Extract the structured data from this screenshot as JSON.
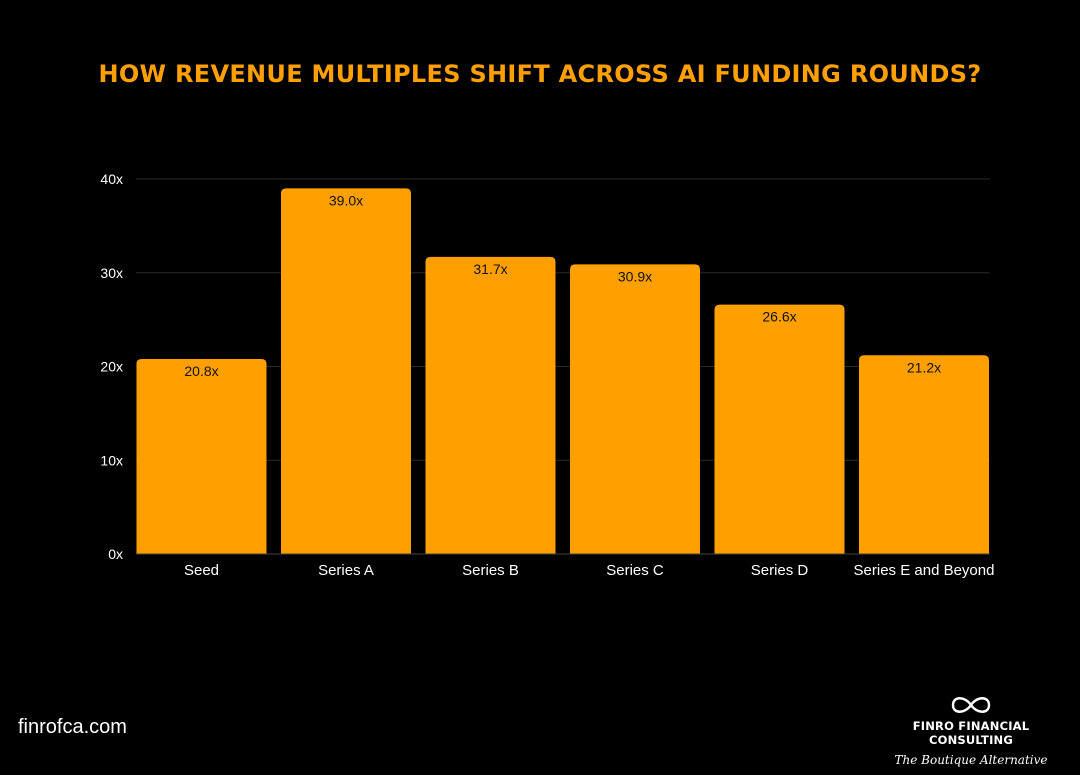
{
  "header": {
    "title": "HOW REVENUE MULTIPLES SHIFT ACROSS AI FUNDING ROUNDS?"
  },
  "colors": {
    "accent": "#FFA000",
    "background": "#000000",
    "text": "#ffffff",
    "grid": "#2a2a2a"
  },
  "chart_data": {
    "type": "bar",
    "categories": [
      "Seed",
      "Series A",
      "Series B",
      "Series C",
      "Series D",
      "Series E and Beyond"
    ],
    "values": [
      20.8,
      39.0,
      31.7,
      30.9,
      26.6,
      21.2
    ],
    "data_labels": [
      "20.8x",
      "39.0x",
      "31.7x",
      "30.9x",
      "26.6x",
      "21.2x"
    ],
    "title": "HOW REVENUE MULTIPLES SHIFT ACROSS AI FUNDING ROUNDS?",
    "xlabel": "",
    "ylabel": "",
    "ylim": [
      0,
      40
    ],
    "yticks": [
      0,
      10,
      20,
      30,
      40
    ],
    "ytick_labels": [
      "0x",
      "10x",
      "20x",
      "30x",
      "40x"
    ],
    "grid": true,
    "legend": "none"
  },
  "footer": {
    "website": "finrofca.com",
    "brand_name": "FINRO FINANCIAL CONSULTING",
    "brand_tagline": "The Boutique Alternative",
    "logo_icon": "infinity-icon"
  }
}
